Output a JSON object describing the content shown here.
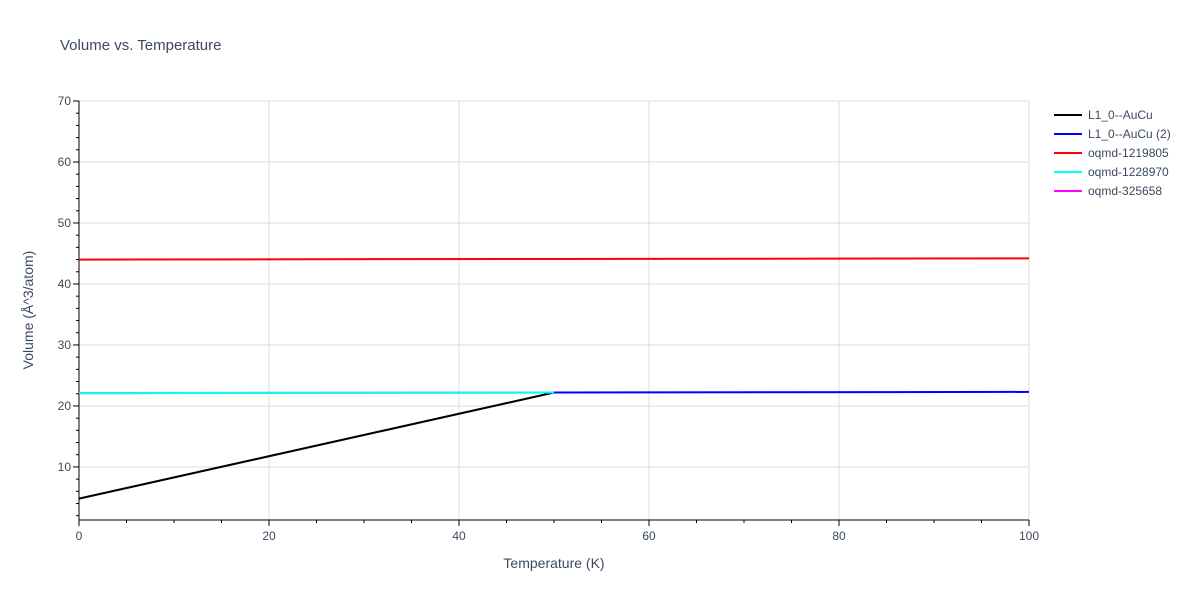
{
  "chart_data": {
    "type": "line",
    "title": "Volume vs. Temperature",
    "xlabel": "Temperature (K)",
    "ylabel": "Volume (Å^3/atom)",
    "xlim": [
      0,
      100
    ],
    "ylim": [
      1.3,
      70
    ],
    "x_ticks": [
      0,
      20,
      40,
      60,
      80,
      100
    ],
    "y_ticks": [
      10,
      20,
      30,
      40,
      50,
      60,
      70
    ],
    "grid": true,
    "legend_position": "right",
    "series": [
      {
        "name": "L1_0--AuCu",
        "color": "#000000",
        "x": [
          0,
          50
        ],
        "y": [
          4.8,
          22.2
        ]
      },
      {
        "name": "L1_0--AuCu (2)",
        "color": "#0000ff",
        "x": [
          50,
          100
        ],
        "y": [
          22.2,
          22.3
        ]
      },
      {
        "name": "oqmd-1219805",
        "color": "#ff0000",
        "x": [
          0,
          50,
          100
        ],
        "y": [
          44.0,
          44.1,
          44.2
        ]
      },
      {
        "name": "oqmd-1228970",
        "color": "#00ffff",
        "x": [
          0,
          50
        ],
        "y": [
          22.1,
          22.2
        ]
      },
      {
        "name": "oqmd-325658",
        "color": "#ff00ff",
        "x": [
          0,
          50
        ],
        "y": [
          22.1,
          22.2
        ]
      }
    ]
  }
}
